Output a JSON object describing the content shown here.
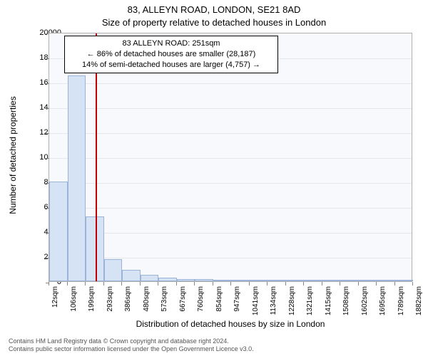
{
  "title_line1": "83, ALLEYN ROAD, LONDON, SE21 8AD",
  "title_line2": "Size of property relative to detached houses in London",
  "chart": {
    "type": "histogram",
    "background_color": "#f7f9fc",
    "grid_color": "#e4e8ee",
    "border_color": "#b0b0b0",
    "bar_fill": "#d6e3f4",
    "bar_stroke": "#9ab3d6",
    "marker_color": "#c00000",
    "ylabel": "Number of detached properties",
    "xlabel": "Distribution of detached houses by size in London",
    "ylim": [
      0,
      20000
    ],
    "ytick_step": 2000,
    "yticks": [
      0,
      2000,
      4000,
      6000,
      8000,
      10000,
      12000,
      14000,
      16000,
      18000,
      20000
    ],
    "xticks": [
      "12sqm",
      "106sqm",
      "199sqm",
      "293sqm",
      "386sqm",
      "480sqm",
      "573sqm",
      "667sqm",
      "760sqm",
      "854sqm",
      "947sqm",
      "1041sqm",
      "1134sqm",
      "1228sqm",
      "1321sqm",
      "1415sqm",
      "1508sqm",
      "1602sqm",
      "1695sqm",
      "1789sqm",
      "1882sqm"
    ],
    "bin_width_sqm": 93.5,
    "x_domain": [
      12,
      1882
    ],
    "values": [
      8000,
      16500,
      5200,
      1800,
      900,
      500,
      300,
      200,
      150,
      120,
      90,
      70,
      50,
      40,
      30,
      25,
      15,
      10,
      8,
      5
    ],
    "marker_x_sqm": 251,
    "title_fontsize": 13,
    "label_fontsize": 12,
    "tick_fontsize": 11
  },
  "callout": {
    "line1": "83 ALLEYN ROAD: 251sqm",
    "line2": "← 86% of detached houses are smaller (28,187)",
    "line3": "14% of semi-detached houses are larger (4,757) →"
  },
  "footer": {
    "line1": "Contains HM Land Registry data © Crown copyright and database right 2024.",
    "line2": "Contains public sector information licensed under the Open Government Licence v3.0."
  }
}
